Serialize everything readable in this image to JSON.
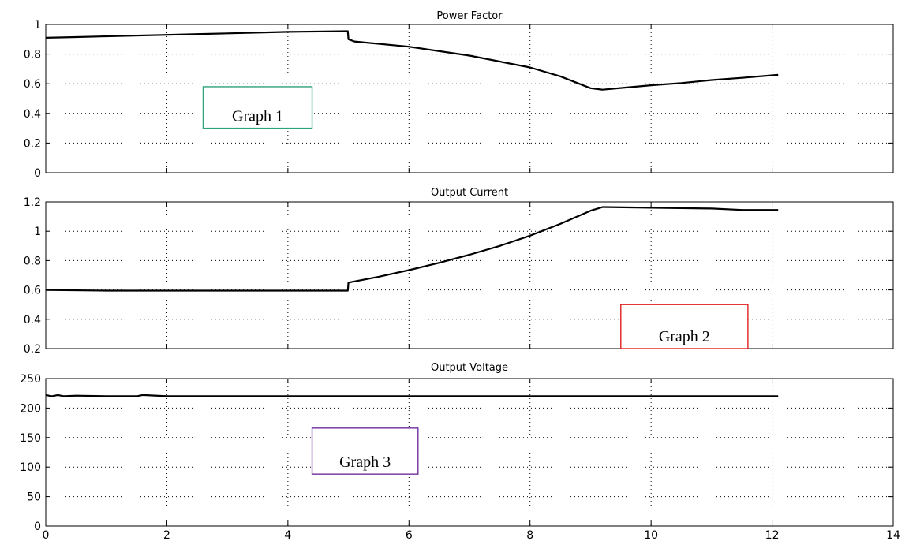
{
  "chart_data": [
    {
      "type": "line",
      "title": "Power Factor",
      "xlim": [
        0,
        14
      ],
      "ylim": [
        0,
        1
      ],
      "xticks": [],
      "yticks": [
        0,
        0.2,
        0.4,
        0.6,
        0.8,
        1
      ],
      "grid": true,
      "series": [
        {
          "x": [
            0,
            0.5,
            1,
            2,
            3,
            4,
            4.99,
            5.0,
            5.1,
            6,
            7,
            8,
            8.5,
            9.0,
            9.2,
            9.6,
            10,
            10.5,
            11,
            11.5,
            12.1
          ],
          "y": [
            0.91,
            0.915,
            0.92,
            0.93,
            0.94,
            0.95,
            0.955,
            0.9,
            0.885,
            0.85,
            0.79,
            0.71,
            0.65,
            0.57,
            0.56,
            0.575,
            0.59,
            0.605,
            0.625,
            0.64,
            0.66
          ]
        }
      ],
      "annotation": {
        "text": "Graph 1",
        "color": "#2ea37a",
        "x_range": [
          2.6,
          4.4
        ],
        "y_range": [
          0.3,
          0.58
        ]
      }
    },
    {
      "type": "line",
      "title": "Output Current",
      "xlim": [
        0,
        14
      ],
      "ylim": [
        0.2,
        1.2
      ],
      "xticks": [],
      "yticks": [
        0.2,
        0.4,
        0.6,
        0.8,
        1,
        1.2
      ],
      "grid": true,
      "series": [
        {
          "x": [
            0,
            1,
            2,
            3,
            4,
            4.99,
            5.0,
            5.5,
            6,
            6.5,
            7,
            7.5,
            8,
            8.5,
            9.0,
            9.2,
            10,
            11,
            11.5,
            12.1
          ],
          "y": [
            0.6,
            0.595,
            0.595,
            0.595,
            0.595,
            0.595,
            0.65,
            0.69,
            0.735,
            0.785,
            0.84,
            0.9,
            0.97,
            1.05,
            1.14,
            1.165,
            1.16,
            1.155,
            1.145,
            1.145
          ]
        }
      ],
      "annotation": {
        "text": "Graph 2",
        "color": "#e02020",
        "x_range": [
          9.5,
          11.6
        ],
        "y_range": [
          0.2,
          0.5
        ]
      }
    },
    {
      "type": "line",
      "title": "Output Voltage",
      "xlim": [
        0,
        14
      ],
      "ylim": [
        0,
        250
      ],
      "xticks": [
        0,
        2,
        4,
        6,
        8,
        10,
        12,
        14
      ],
      "yticks": [
        0,
        50,
        100,
        150,
        200,
        250
      ],
      "grid": true,
      "series": [
        {
          "x": [
            0,
            0.1,
            0.2,
            0.3,
            0.5,
            1,
            1.5,
            1.6,
            2,
            4,
            6,
            8,
            10,
            12,
            12.1
          ],
          "y": [
            222,
            220,
            222,
            220,
            221,
            220,
            220,
            222,
            220,
            220,
            220,
            220,
            220,
            220,
            220
          ]
        }
      ],
      "annotation": {
        "text": "Graph 3",
        "color": "#7030a0",
        "x_range": [
          4.4,
          6.15
        ],
        "y_range": [
          88,
          166
        ]
      }
    }
  ]
}
